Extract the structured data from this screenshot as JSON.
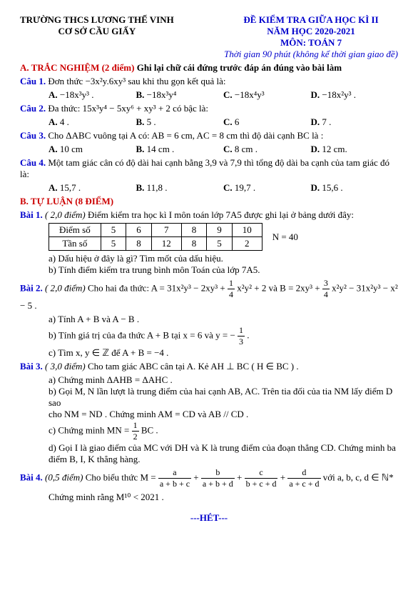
{
  "header": {
    "left1": "TRƯỜNG THCS LƯƠNG THẾ VINH",
    "left2": "CƠ SỞ CẦU GIẤY",
    "right1": "ĐỀ KIỂM TRA GIỮA HỌC KÌ II",
    "right2": "NĂM HỌC 2020-2021",
    "right3": "MÔN: TOÁN 7",
    "time": "Thời gian 90 phút (không kể thời gian giao đề)"
  },
  "sectionA": "A. TRẮC NGHIỆM (2 điểm)",
  "sectionA_tail": " Ghi lại chữ cái đứng trước đáp án đúng vào bài làm",
  "c1": {
    "label": "Câu 1.",
    "text": " Đơn thức  −3x²y.6xy³  sau khi thu gọn kết quả là:",
    "A": "−18x³y³ .",
    "B": "−18x³y⁴",
    "C": "−18x⁴y³",
    "D": "−18x²y³ ."
  },
  "c2": {
    "label": "Câu 2.",
    "text": " Đa thức:  15x³y⁴ − 5xy⁶ + xy³ + 2  có bậc là:",
    "A": "4 .",
    "B": "5 .",
    "C": "6",
    "D": "7 ."
  },
  "c3": {
    "label": "Câu 3.",
    "text": " Cho  ΔABC  vuông tại  A  có:  AB = 6 cm,  AC = 8 cm  thì độ dài cạnh  BC  là :",
    "A": "10 cm",
    "B": "14 cm .",
    "C": "8 cm .",
    "D": "12 cm."
  },
  "c4": {
    "label": "Câu 4.",
    "text": " Một tam giác cân có độ dài hai cạnh bằng 3,9 và 7,9 thì tổng độ dài ba cạnh của tam giác đó là:",
    "A": "15,7 .",
    "B": "11,8 .",
    "C": "19,7 .",
    "D": "15,6 ."
  },
  "sectionB": "B. TỰ LUẬN (8 ĐIỂM)",
  "b1": {
    "label": "Bài 1.",
    "pts": " ( 2,0 điểm)",
    "text": " Điểm kiểm tra học kì I môn toán lớp 7A5 được ghi lại ở bảng dưới đây:",
    "th": "Điểm số",
    "tr": "Tần số",
    "cols": [
      "5",
      "6",
      "7",
      "8",
      "9",
      "10"
    ],
    "vals": [
      "5",
      "8",
      "12",
      "8",
      "5",
      "2"
    ],
    "N": "N = 40",
    "a": "a) Dấu hiệu ở đây là gì? Tìm mốt của dấu hiệu.",
    "b": "b) Tính điểm kiểm tra trung bình môn Toán của lớp 7A5."
  },
  "b2": {
    "label": "Bài 2.",
    "pts": " ( 2,0 điểm)",
    "text_pre": " Cho hai đa thức:  A = 31x²y³ − 2xy³ + ",
    "text_mid": "x²y² + 2  và  B = 2xy³ + ",
    "text_post": "x²y² − 31x²y³ − x² − 5 .",
    "a": "a) Tính  A + B  và  A − B .",
    "b_pre": "b) Tính giá trị của đa thức  A + B  tại  x = 6  và  y = −",
    "b_post": ".",
    "c": "c) Tìm  x, y ∈ ℤ  để  A + B = −4 ."
  },
  "b3": {
    "label": "Bài 3.",
    "pts": " ( 3,0 điểm)",
    "text": " Cho tam giác ABC cân tại A. Kẻ  AH ⊥ BC  ( H ∈ BC ) .",
    "a": "a) Chứng minh  ΔAHB = ΔAHC .",
    "b1": "b) Gọi M, N lần lượt là trung điểm của hai cạnh AB, AC. Trên tia đối của tia NM lấy điểm D sao",
    "b2": "cho  NM = ND . Chứng minh  AM = CD  và  AB // CD .",
    "c_pre": "c) Chứng minh  MN = ",
    "c_post": "BC .",
    "d1": "d) Gọi I là giao điểm của MC với DH và K là trung điểm của đoạn thẳng CD. Chứng minh ba",
    "d2": "điểm B, I, K thẳng hàng."
  },
  "b4": {
    "label": "Bài 4.",
    "pts": " (0,5 điểm)",
    "text_pre": " Cho biểu thức  M = ",
    "text_post": "  với  a, b, c, d ∈ ℕ*",
    "t1n": "a",
    "t1d": "a + b + c",
    "t2n": "b",
    "t2d": "a + b + d",
    "t3n": "c",
    "t3d": "b + c + d",
    "t4n": "d",
    "t4d": "a + c + d",
    "proof": "Chứng minh rằng  M¹⁰ < 2021 ."
  },
  "end": "---HÉT---"
}
